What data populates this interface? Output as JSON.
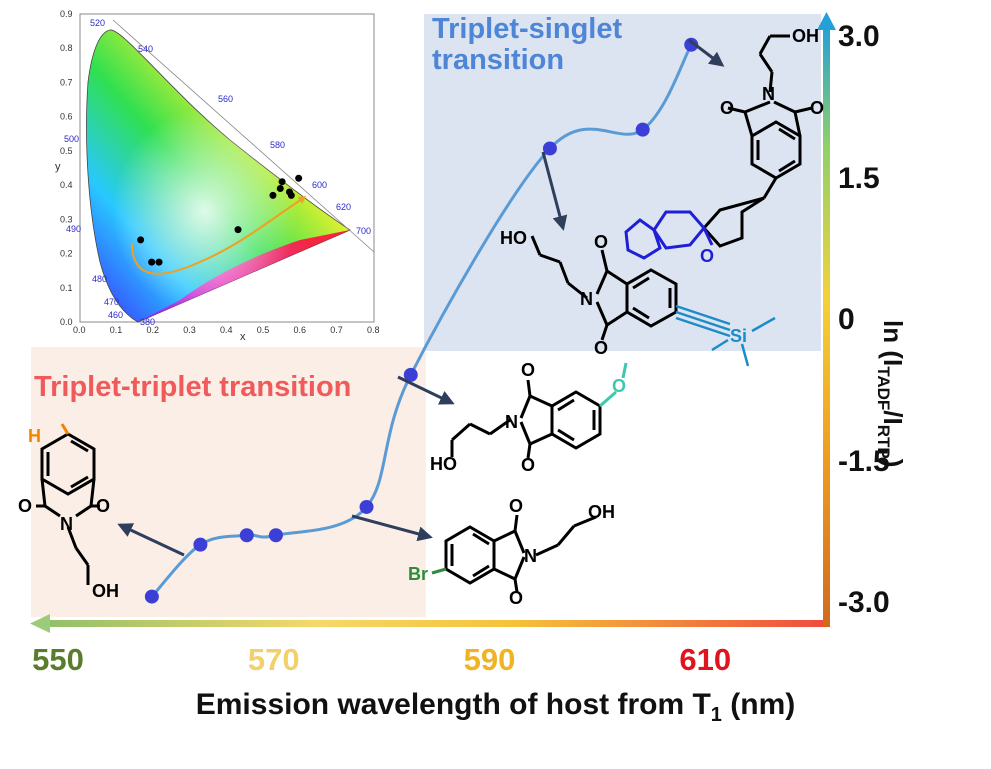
{
  "chart_data": {
    "type": "line",
    "xlabel_main": "Emission wavelength of host from T",
    "xlabel_sub": "1",
    "xlabel_tail": " (nm)",
    "ylabel_pre": "ln (I",
    "ylabel_sub1": "TADF",
    "ylabel_mid": "/I",
    "ylabel_sub2": "RTP",
    "ylabel_post": ")",
    "x_ticks": [
      {
        "label": "550",
        "color": "#5a7d2c"
      },
      {
        "label": "570",
        "color": "#f2d06b"
      },
      {
        "label": "590",
        "color": "#f0b323"
      },
      {
        "label": "610",
        "color": "#e0141e"
      }
    ],
    "y_ticks": [
      "3.0",
      "1.5",
      "0",
      "-1.5",
      "-3.0"
    ],
    "xlim": [
      550,
      616
    ],
    "ylim": [
      -3.0,
      3.0
    ],
    "x_axis_direction": "decreasing-to-right-is-increasing, arrow points left",
    "points": [
      {
        "x": 558.7,
        "y": -2.9
      },
      {
        "x": 563.2,
        "y": -2.35
      },
      {
        "x": 567.5,
        "y": -2.25
      },
      {
        "x": 570.2,
        "y": -2.25
      },
      {
        "x": 578.6,
        "y": -1.95
      },
      {
        "x": 582.7,
        "y": -0.55
      },
      {
        "x": 595.6,
        "y": 1.85
      },
      {
        "x": 604.2,
        "y": 2.05
      },
      {
        "x": 608.7,
        "y": 2.95
      }
    ],
    "series_color": "#5b9bd5",
    "marker_color": "#3b3fd6"
  },
  "regions": {
    "singlet_title": "Triplet-singlet\ntransition",
    "singlet_color": "#4d86d6",
    "singlet_bg": "#dde4f1",
    "triplet_title": "Triplet-triplet transition",
    "triplet_color": "#f05a5a",
    "triplet_bg": "#fbeee6"
  },
  "cie_inset": {
    "x_ticks": [
      "0.0",
      "0.1",
      "0.2",
      "0.3",
      "0.4",
      "0.5",
      "0.6",
      "0.7",
      "0.8"
    ],
    "y_ticks": [
      "0.0",
      "0.1",
      "0.2",
      "0.3",
      "0.4",
      "0.5",
      "0.6",
      "0.7",
      "0.8",
      "0.9"
    ],
    "xlabel": "x",
    "ylabel": "y",
    "wavelength_labels": [
      "380",
      "460",
      "470",
      "480",
      "490",
      "500",
      "520",
      "540",
      "560",
      "580",
      "600",
      "620",
      "700"
    ],
    "points": [
      [
        0.165,
        0.24
      ],
      [
        0.195,
        0.175
      ],
      [
        0.215,
        0.175
      ],
      [
        0.43,
        0.27
      ],
      [
        0.525,
        0.37
      ],
      [
        0.545,
        0.39
      ],
      [
        0.55,
        0.41
      ],
      [
        0.57,
        0.38
      ],
      [
        0.575,
        0.37
      ],
      [
        0.595,
        0.42
      ]
    ]
  },
  "molecules": {
    "labels": [
      "OH",
      "H",
      "O",
      "N",
      "Br",
      "Si",
      "HO"
    ]
  }
}
